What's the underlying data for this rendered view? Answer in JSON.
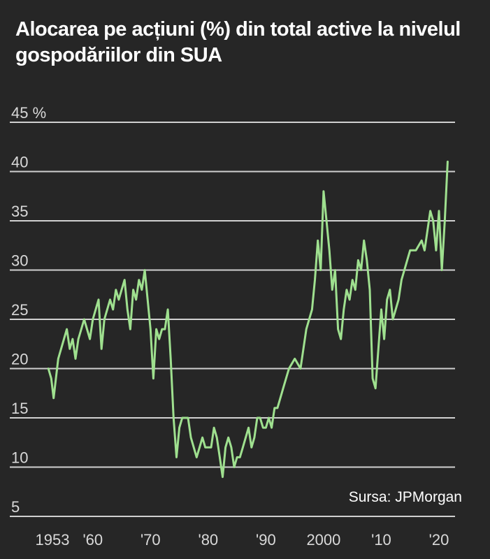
{
  "title_lines": [
    "Alocarea pe acțiuni (%) din total active la nivelul",
    "gospodăriilor din SUA"
  ],
  "source": "Sursa: JPMorgan",
  "colors": {
    "background": "#262626",
    "gridline": "#d0d0d0",
    "line": "#9fe08f",
    "text": "#ffffff",
    "tick_text": "#d9d9d9"
  },
  "chart_data": {
    "type": "line",
    "title": "Alocarea pe acțiuni (%) din total active la nivelul gospodăriilor din SUA",
    "xlabel": "",
    "ylabel": "",
    "xlim": [
      1950,
      2022
    ],
    "ylim": [
      5,
      45
    ],
    "grid": true,
    "y_ticks": [
      5,
      10,
      15,
      20,
      25,
      30,
      35,
      40,
      45
    ],
    "y_tick_labels": [
      "5",
      "10",
      "15",
      "20",
      "25",
      "30",
      "35",
      "40",
      "45 %"
    ],
    "x_ticks": [
      1953,
      1960,
      1970,
      1980,
      1990,
      2000,
      2010,
      2020
    ],
    "x_tick_labels": [
      "1953",
      "'60",
      "'70",
      "'80",
      "'90",
      "2000",
      "'10",
      "'20"
    ],
    "series": [
      {
        "x": [
          1952.3,
          1952.8,
          1953.2,
          1953.6,
          1954.0,
          1954.5,
          1955.0,
          1955.5,
          1956.0,
          1956.5,
          1957.0,
          1957.5,
          1958.0,
          1958.5,
          1959.0,
          1959.5,
          1960.0,
          1960.5,
          1961.0,
          1961.5,
          1962.0,
          1962.5,
          1963.0,
          1963.5,
          1964.0,
          1964.5,
          1965.0,
          1965.5,
          1966.0,
          1966.5,
          1967.0,
          1967.5,
          1968.0,
          1968.5,
          1969.0,
          1969.5,
          1970.0,
          1970.5,
          1971.0,
          1971.5,
          1972.0,
          1972.5,
          1973.0,
          1973.5,
          1974.0,
          1974.5,
          1975.0,
          1975.5,
          1976.0,
          1976.5,
          1977.0,
          1977.5,
          1978.0,
          1978.5,
          1979.0,
          1979.5,
          1980.0,
          1980.5,
          1981.0,
          1981.5,
          1982.0,
          1982.5,
          1983.0,
          1983.5,
          1984.0,
          1984.5,
          1985.0,
          1985.5,
          1986.0,
          1986.5,
          1987.0,
          1987.5,
          1988.0,
          1988.5,
          1989.0,
          1989.5,
          1990.0,
          1990.5,
          1991.0,
          1991.5,
          1992.0,
          1993.0,
          1994.0,
          1995.0,
          1996.0,
          1997.0,
          1998.0,
          1998.5,
          1999.0,
          1999.5,
          2000.0,
          2000.5,
          2001.0,
          2001.5,
          2002.0,
          2002.5,
          2003.0,
          2003.5,
          2004.0,
          2004.5,
          2005.0,
          2005.5,
          2006.0,
          2006.5,
          2007.0,
          2007.5,
          2008.0,
          2008.5,
          2009.0,
          2009.5,
          2010.0,
          2010.5,
          2011.0,
          2011.5,
          2012.0,
          2012.5,
          2013.0,
          2013.5,
          2014.0,
          2015.0,
          2016.0,
          2017.0,
          2017.5,
          2018.0,
          2018.5,
          2019.0,
          2019.5,
          2020.0,
          2020.5,
          2021.0,
          2021.5
        ],
        "y": [
          20,
          19,
          17,
          19,
          21,
          22,
          23,
          24,
          22,
          23,
          21,
          23,
          24,
          25,
          24,
          23,
          25,
          26,
          27,
          22,
          25,
          26,
          27,
          26,
          28,
          27,
          28,
          29,
          26,
          24,
          28,
          27,
          29,
          28,
          30,
          27,
          24,
          19,
          24,
          23,
          24,
          24,
          26,
          21,
          15,
          11,
          14,
          15,
          15,
          15,
          13,
          12,
          11,
          12,
          13,
          12,
          12,
          12,
          14,
          13,
          11,
          9,
          12,
          13,
          12,
          10,
          11,
          11,
          12,
          13,
          14,
          12,
          13,
          15,
          15,
          14,
          14,
          15,
          14,
          16,
          16,
          18,
          20,
          21,
          20,
          24,
          26,
          29,
          33,
          30,
          38,
          35,
          32,
          28,
          30,
          24,
          23,
          26,
          28,
          27,
          29,
          28,
          31,
          30,
          33,
          31,
          28,
          19,
          18,
          22,
          26,
          23,
          27,
          28,
          25,
          26,
          27,
          29,
          30,
          32,
          32,
          33,
          32,
          34,
          36,
          35,
          32,
          36,
          30,
          35,
          41
        ]
      }
    ]
  }
}
